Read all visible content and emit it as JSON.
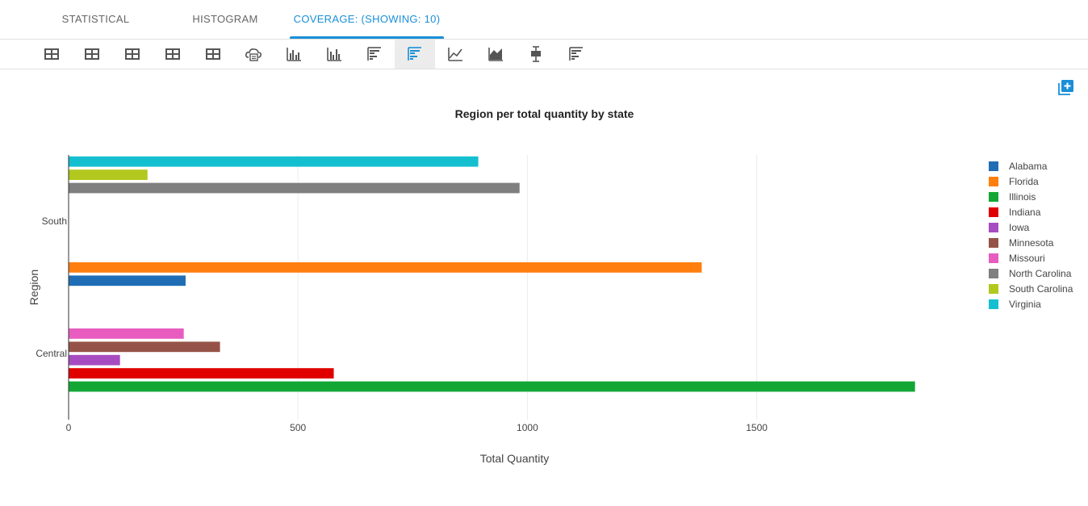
{
  "tabs": [
    {
      "label": "STATISTICAL",
      "active": false
    },
    {
      "label": "HISTOGRAM",
      "active": false
    },
    {
      "label": "COVERAGE: (SHOWING: 10)",
      "active": true
    }
  ],
  "toolbar": {
    "buttons": [
      {
        "icon": "table-icon",
        "active": false
      },
      {
        "icon": "table-icon",
        "active": false
      },
      {
        "icon": "table-icon",
        "active": false
      },
      {
        "icon": "table-icon",
        "active": false
      },
      {
        "icon": "table-icon",
        "active": false
      },
      {
        "icon": "cloud-icon",
        "active": false
      },
      {
        "icon": "vertical-bar-chart-icon",
        "active": false
      },
      {
        "icon": "vertical-bar-chart-icon",
        "active": false
      },
      {
        "icon": "horizontal-bar-chart-icon",
        "active": false
      },
      {
        "icon": "horizontal-grouped-bar-chart-icon",
        "active": true
      },
      {
        "icon": "line-chart-icon",
        "active": false
      },
      {
        "icon": "area-chart-icon",
        "active": false
      },
      {
        "icon": "box-plot-icon",
        "active": false
      },
      {
        "icon": "horizontal-bar-chart-icon",
        "active": false
      }
    ],
    "accent_color": "#1a8fd8"
  },
  "add_button_icon": "add-chart-icon",
  "chart_data": {
    "type": "bar",
    "orientation": "horizontal",
    "title": "Region per total quantity by state",
    "xlabel": "Total Quantity",
    "ylabel": "Region",
    "categories": [
      "Central",
      "South"
    ],
    "xlim": [
      0,
      2000
    ],
    "xticks": [
      0,
      500,
      1000,
      1500
    ],
    "grid": true,
    "legend_position": "right",
    "series": [
      {
        "name": "Alabama",
        "color": "#1f6db5",
        "values": [
          null,
          255
        ]
      },
      {
        "name": "Florida",
        "color": "#ff7f0e",
        "values": [
          null,
          1380
        ]
      },
      {
        "name": "Illinois",
        "color": "#12a735",
        "values": [
          1845,
          null
        ]
      },
      {
        "name": "Indiana",
        "color": "#e00000",
        "values": [
          578,
          null
        ]
      },
      {
        "name": "Iowa",
        "color": "#a64cc0",
        "values": [
          112,
          null
        ]
      },
      {
        "name": "Minnesota",
        "color": "#955348",
        "values": [
          330,
          null
        ]
      },
      {
        "name": "Missouri",
        "color": "#e85cc0",
        "values": [
          251,
          null
        ]
      },
      {
        "name": "North Carolina",
        "color": "#7f7f7f",
        "values": [
          null,
          983
        ]
      },
      {
        "name": "South Carolina",
        "color": "#b3c81e",
        "values": [
          null,
          172
        ]
      },
      {
        "name": "Virginia",
        "color": "#14bfd0",
        "values": [
          null,
          893
        ]
      }
    ]
  }
}
